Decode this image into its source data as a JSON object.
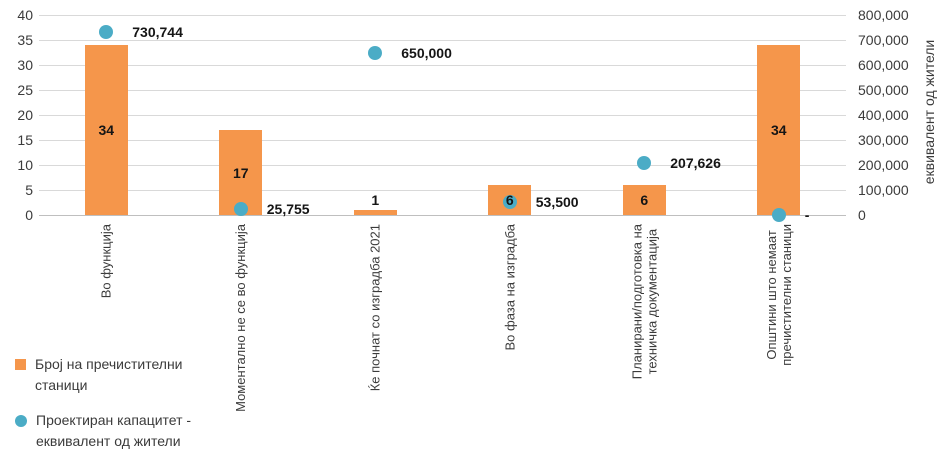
{
  "chart_data": {
    "type": "bar",
    "title": "",
    "categories": [
      "Во функција",
      "Моментално не се во функција",
      "Ќе почнат со изградба 2021",
      "Во фаза на изградба",
      "Планирани/подготовка на\nтехничка документација",
      "Општини што немаат\nпречистителни станици"
    ],
    "series": [
      {
        "name": "Број на пречистителни станици",
        "kind": "bar",
        "axis": "left",
        "color": "#F5964B",
        "values": [
          34,
          17,
          1,
          6,
          6,
          34
        ],
        "labels": [
          "34",
          "17",
          "1",
          "6",
          "6",
          "34"
        ]
      },
      {
        "name": "Проектиран капацитет - еквивалент од жители",
        "kind": "scatter",
        "axis": "right",
        "color": "#4BACC6",
        "values": [
          730744,
          25755,
          650000,
          53500,
          207626,
          0
        ],
        "labels": [
          "730,744",
          "25,755",
          "650,000",
          "53,500",
          "207,626",
          "-"
        ]
      }
    ],
    "left_axis": {
      "min": 0,
      "max": 40,
      "step": 5,
      "ticks": [
        "0",
        "5",
        "10",
        "15",
        "20",
        "25",
        "30",
        "35",
        "40"
      ]
    },
    "right_axis": {
      "min": 0,
      "max": 800000,
      "step": 100000,
      "ticks": [
        "0",
        "100,000",
        "200,000",
        "300,000",
        "400,000",
        "500,000",
        "600,000",
        "700,000",
        "800,000"
      ],
      "title": "еквивалент од жители"
    },
    "legend": [
      {
        "label": "Број на пречистителни\nстаници",
        "marker": "square",
        "color": "#F5964B"
      },
      {
        "label": "Проектиран капацитет -\nеквивалент од жители",
        "marker": "circle",
        "color": "#4BACC6"
      }
    ],
    "grid": true,
    "legend_position": "bottom-left",
    "colors": {
      "gridline": "#D9D9D9",
      "axis_line": "#BFBFBF",
      "text": "#3b3b3b"
    }
  }
}
